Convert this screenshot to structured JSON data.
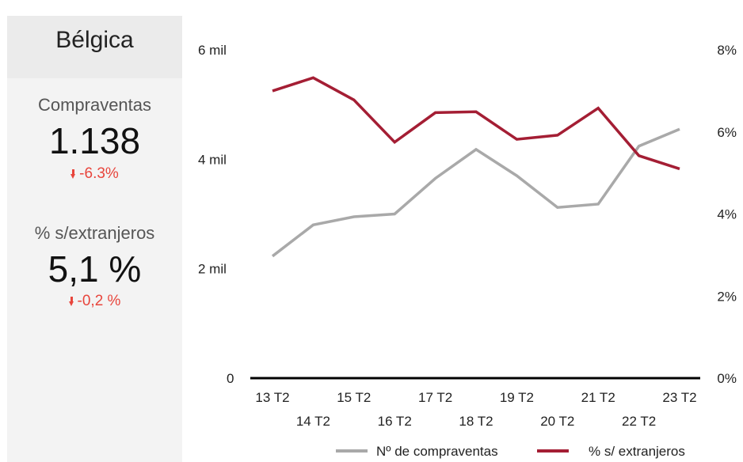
{
  "sidebar": {
    "country": "Bélgica",
    "metrics": [
      {
        "label": "Compraventas",
        "value": "1.138",
        "change": "-6.3%"
      },
      {
        "label": "% s/extranjeros",
        "value": "5,1 %",
        "change": "-0,2 %"
      }
    ]
  },
  "colors": {
    "compraventas": "#a9a9a9",
    "extranjeros": "#a41e34",
    "negative": "#e8453c"
  },
  "chart_data": {
    "type": "line",
    "title": "",
    "categories": [
      "13 T2",
      "14 T2",
      "15 T2",
      "16 T2",
      "17 T2",
      "18 T2",
      "19 T2",
      "20 T2",
      "21 T2",
      "22 T2",
      "23 T2"
    ],
    "series": [
      {
        "name": "Nº de compraventas",
        "axis": "left",
        "color": "#a9a9a9",
        "values": [
          2230,
          2800,
          2950,
          3000,
          3650,
          4180,
          3700,
          3120,
          3180,
          4240,
          4550
        ]
      },
      {
        "name": "% s/ extranjeros",
        "axis": "right",
        "color": "#a41e34",
        "values": [
          7.0,
          7.32,
          6.78,
          5.75,
          6.47,
          6.49,
          5.82,
          5.92,
          6.58,
          5.42,
          5.1
        ]
      }
    ],
    "left_axis": {
      "min": 0,
      "max": 6000,
      "ticks": [
        0,
        2000,
        4000,
        6000
      ],
      "tick_labels": [
        "0",
        "2 mil",
        "4 mil",
        "6 mil"
      ]
    },
    "right_axis": {
      "min": 0,
      "max": 8,
      "ticks": [
        0,
        2,
        4,
        6,
        8
      ],
      "tick_labels": [
        "0%",
        "2%",
        "4%",
        "6%",
        "8%"
      ]
    },
    "grid": false,
    "legend": "bottom"
  }
}
